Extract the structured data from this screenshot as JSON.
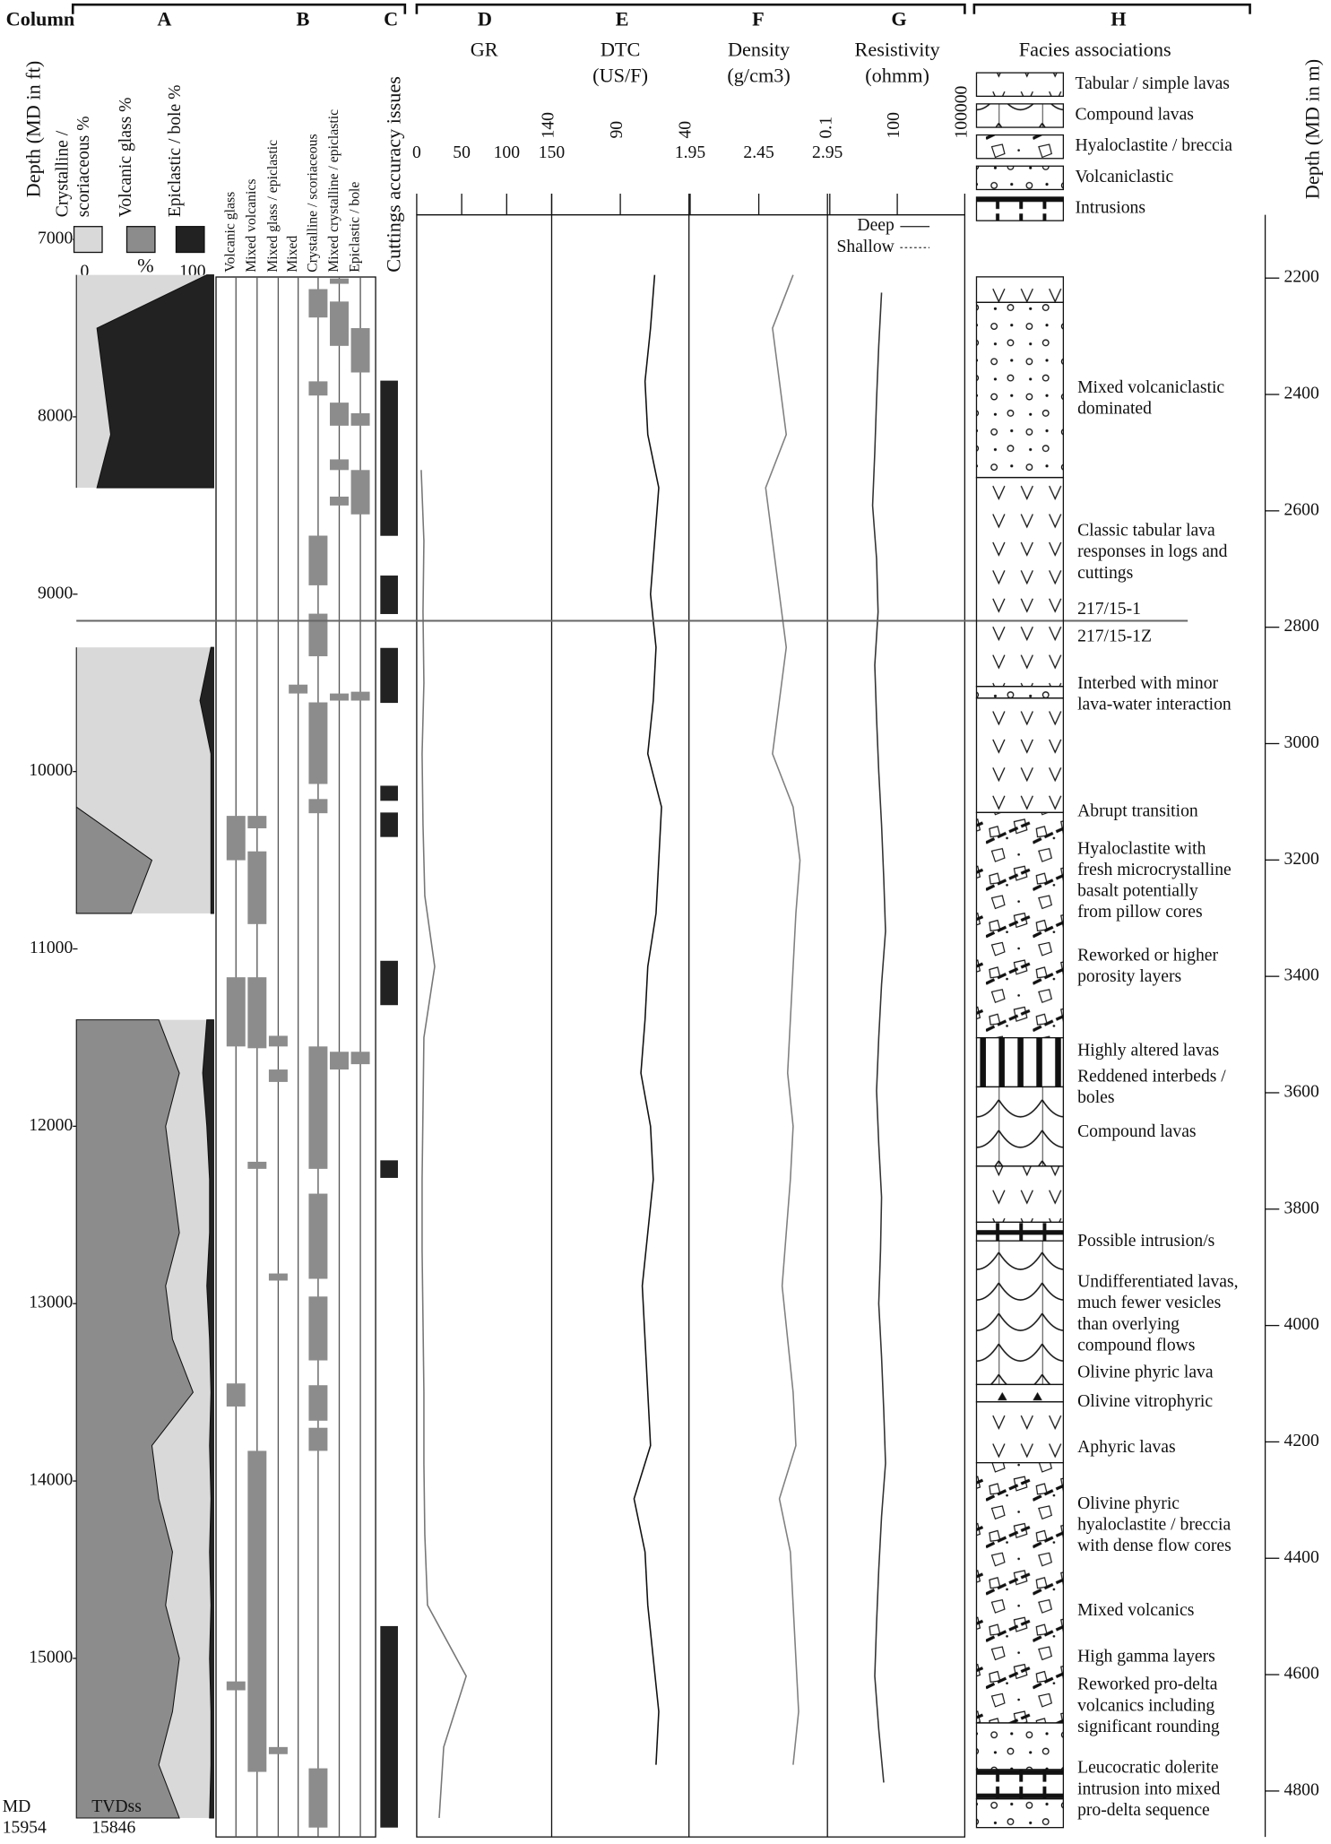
{
  "header": {
    "column": "Column",
    "letters": [
      "A",
      "B",
      "C",
      "D",
      "E",
      "F",
      "G",
      "H"
    ]
  },
  "depth_ft": {
    "label": "Depth (MD in ft)",
    "lim": [
      7000,
      15954
    ],
    "ticks": [
      7000,
      8000,
      9000,
      10000,
      11000,
      12000,
      13000,
      14000,
      15000
    ],
    "md_label": "MD",
    "md_value": 15954
  },
  "depth_m": {
    "label": "Depth (MD in m)",
    "lim": [
      2133.6,
      4862.8
    ],
    "ticks": [
      2200,
      2400,
      2600,
      2800,
      3000,
      3200,
      3400,
      3600,
      3800,
      4000,
      4200,
      4400,
      4600,
      4800
    ]
  },
  "column_a": {
    "legend": [
      {
        "label": [
          "Crystalline /",
          "scoriaceous %"
        ],
        "color": "#d9d9d9"
      },
      {
        "label": [
          "Volcanic glass %"
        ],
        "color": "#8c8c8c"
      },
      {
        "label": [
          "Epiclastic / bole %"
        ],
        "color": "#222222"
      }
    ],
    "axis_min": 0,
    "axis_unit": "%",
    "axis_max": 100,
    "depths": [
      7200,
      7500,
      7800,
      8100,
      8400,
      8700,
      9000,
      9300,
      9600,
      9900,
      10200,
      10500,
      10800,
      11100,
      11400,
      11700,
      12000,
      12300,
      12600,
      12900,
      13200,
      13500,
      13800,
      14100,
      14400,
      14700,
      15000,
      15300,
      15600,
      15900
    ],
    "glass": [
      0,
      0,
      0,
      0,
      0,
      null,
      null,
      0,
      0,
      0,
      0,
      55,
      40,
      null,
      60,
      75,
      65,
      70,
      75,
      65,
      70,
      85,
      55,
      60,
      70,
      65,
      75,
      70,
      60,
      75
    ],
    "epiclastic": [
      5,
      85,
      80,
      75,
      85,
      null,
      null,
      2,
      10,
      2,
      2,
      2,
      2,
      null,
      5,
      8,
      5,
      3,
      3,
      5,
      3,
      2,
      3,
      2,
      3,
      2,
      3,
      2,
      2,
      3
    ],
    "tvdss_label": "TVDss",
    "tvdss_value": 15846
  },
  "column_b": {
    "color": "#8c8c8c",
    "lithologies": [
      {
        "name": "Volcanic glass",
        "intervals": [
          [
            10250,
            10500
          ],
          [
            11160,
            11550
          ],
          [
            13450,
            13580
          ],
          [
            15130,
            15180
          ]
        ]
      },
      {
        "name": "Mixed volcanics",
        "intervals": [
          [
            10250,
            10320
          ],
          [
            10450,
            10860
          ],
          [
            11160,
            11560
          ],
          [
            12200,
            12240
          ],
          [
            13830,
            15640
          ]
        ]
      },
      {
        "name": "Mixed glass / epiclastic",
        "intervals": [
          [
            11490,
            11550
          ],
          [
            11680,
            11750
          ],
          [
            12830,
            12870
          ],
          [
            15500,
            15540
          ]
        ]
      },
      {
        "name": "Mixed",
        "intervals": [
          [
            9510,
            9560
          ]
        ]
      },
      {
        "name": "Crystalline / scoriaceous",
        "intervals": [
          [
            7280,
            7440
          ],
          [
            7800,
            7880
          ],
          [
            8670,
            8950
          ],
          [
            9110,
            9350
          ],
          [
            9610,
            10070
          ],
          [
            10155,
            10235
          ],
          [
            11550,
            12240
          ],
          [
            12380,
            12860
          ],
          [
            12960,
            13320
          ],
          [
            13460,
            13660
          ],
          [
            13700,
            13830
          ],
          [
            15620,
            15954
          ]
        ]
      },
      {
        "name": "Mixed crystalline / epiclastic",
        "intervals": [
          [
            7220,
            7250
          ],
          [
            7350,
            7600
          ],
          [
            7920,
            8050
          ],
          [
            8240,
            8300
          ],
          [
            8450,
            8500
          ],
          [
            9560,
            9600
          ],
          [
            11580,
            11680
          ]
        ]
      },
      {
        "name": "Epiclastic / bole",
        "intervals": [
          [
            7500,
            7750
          ],
          [
            7980,
            8050
          ],
          [
            8300,
            8550
          ],
          [
            9550,
            9600
          ],
          [
            11580,
            11650
          ]
        ]
      }
    ]
  },
  "column_c": {
    "label": "Cuttings accuracy issues",
    "color": "#222222",
    "intervals": [
      [
        7796,
        8671
      ],
      [
        8895,
        9112
      ],
      [
        9303,
        9613
      ],
      [
        10080,
        10165
      ],
      [
        10231,
        10369
      ],
      [
        11067,
        11317
      ],
      [
        12192,
        12291
      ],
      [
        14818,
        15954
      ]
    ]
  },
  "logs": [
    {
      "title": [
        "GR"
      ],
      "lim": [
        0,
        150
      ],
      "ticks": [
        0,
        50,
        100,
        150
      ],
      "color": "#777777",
      "log": false,
      "depths": [
        8300,
        8700,
        9100,
        9500,
        9900,
        10300,
        10700,
        11100,
        11500,
        11900,
        12300,
        12700,
        13100,
        13500,
        13900,
        14300,
        14700,
        15100,
        15500,
        15900
      ],
      "values": [
        5,
        8,
        7,
        8,
        6,
        7,
        9,
        20,
        8,
        7,
        6,
        6,
        7,
        8,
        8,
        9,
        12,
        55,
        30,
        25
      ]
    },
    {
      "title": [
        "DTC",
        "(US/F)"
      ],
      "lim": [
        140,
        40
      ],
      "ticks": [
        140,
        90,
        40
      ],
      "color": "#111111",
      "log": false,
      "depths": [
        7200,
        7500,
        7800,
        8100,
        8400,
        8700,
        9000,
        9300,
        9600,
        9900,
        10200,
        10500,
        10800,
        11100,
        11400,
        11700,
        12000,
        12300,
        12600,
        12900,
        13200,
        13500,
        13800,
        14100,
        14400,
        14700,
        15000,
        15300,
        15600
      ],
      "values": [
        65,
        68,
        72,
        70,
        62,
        65,
        68,
        64,
        66,
        70,
        60,
        62,
        64,
        70,
        72,
        75,
        68,
        66,
        70,
        74,
        72,
        70,
        68,
        80,
        72,
        70,
        66,
        62,
        64
      ]
    },
    {
      "title": [
        "Density",
        "(g/cm3)"
      ],
      "lim": [
        1.95,
        2.95
      ],
      "ticks": [
        1.95,
        2.45,
        2.95
      ],
      "color": "#808080",
      "log": false,
      "depths": [
        7200,
        7500,
        7800,
        8100,
        8400,
        8700,
        9000,
        9300,
        9600,
        9900,
        10200,
        10500,
        10800,
        11100,
        11400,
        11700,
        12000,
        12300,
        12600,
        12900,
        13200,
        13500,
        13800,
        14100,
        14400,
        14700,
        15000,
        15300,
        15600
      ],
      "values": [
        2.7,
        2.55,
        2.6,
        2.65,
        2.5,
        2.55,
        2.6,
        2.65,
        2.6,
        2.55,
        2.7,
        2.75,
        2.72,
        2.7,
        2.68,
        2.66,
        2.7,
        2.68,
        2.65,
        2.62,
        2.66,
        2.7,
        2.72,
        2.6,
        2.68,
        2.7,
        2.72,
        2.74,
        2.7
      ]
    },
    {
      "title": [
        "Resistivity",
        "(ohmm)"
      ],
      "lim": [
        0.1,
        100000
      ],
      "ticks": [
        0.1,
        100,
        100000
      ],
      "color": "#333333",
      "log": true,
      "legend": [
        "Deep",
        "Shallow"
      ],
      "depths": [
        7300,
        7600,
        7900,
        8200,
        8500,
        8800,
        9100,
        9400,
        9700,
        10000,
        10300,
        10600,
        10900,
        11200,
        11500,
        11800,
        12100,
        12400,
        12700,
        13000,
        13300,
        13600,
        13900,
        14200,
        14500,
        14800,
        15100,
        15400,
        15700
      ],
      "values": [
        20,
        15,
        12,
        10,
        8,
        12,
        14,
        10,
        12,
        15,
        20,
        25,
        30,
        20,
        15,
        12,
        15,
        20,
        18,
        15,
        20,
        25,
        30,
        20,
        15,
        12,
        10,
        15,
        25
      ]
    }
  ],
  "well_change": {
    "depth": 9150,
    "upper": "217/15-1",
    "lower": "217/15-1Z"
  },
  "facies": {
    "title": "Facies associations",
    "legend": [
      {
        "type": "tabular",
        "label": "Tabular / simple lavas"
      },
      {
        "type": "compound",
        "label": "Compound lavas"
      },
      {
        "type": "hyaloclastite",
        "label": "Hyaloclastite / breccia"
      },
      {
        "type": "volcaniclastic",
        "label": "Volcaniclastic"
      },
      {
        "type": "intrusion",
        "label": "Intrusions"
      }
    ],
    "intervals": [
      {
        "top": 7211,
        "base": 7355,
        "type": "tabular"
      },
      {
        "top": 7355,
        "base": 8342,
        "type": "volcaniclastic"
      },
      {
        "top": 8342,
        "base": 9520,
        "type": "tabular"
      },
      {
        "top": 9520,
        "base": 9586,
        "type": "volcaniclastic"
      },
      {
        "top": 9586,
        "base": 10231,
        "type": "tabular"
      },
      {
        "top": 10231,
        "base": 11501,
        "type": "hyaloclastite"
      },
      {
        "top": 11501,
        "base": 11778,
        "type": "altered"
      },
      {
        "top": 11778,
        "base": 12225,
        "type": "compound"
      },
      {
        "top": 12225,
        "base": 12541,
        "type": "tabular"
      },
      {
        "top": 12541,
        "base": 12646,
        "type": "intrusion"
      },
      {
        "top": 12646,
        "base": 13456,
        "type": "compound"
      },
      {
        "top": 13456,
        "base": 13554,
        "type": "vitrophyric"
      },
      {
        "top": 13554,
        "base": 13897,
        "type": "tabular"
      },
      {
        "top": 13897,
        "base": 15364,
        "type": "hyaloclastite"
      },
      {
        "top": 15364,
        "base": 15627,
        "type": "volcaniclastic"
      },
      {
        "top": 15627,
        "base": 15792,
        "type": "intrusion"
      },
      {
        "top": 15792,
        "base": 15954,
        "type": "volcaniclastic"
      }
    ],
    "notes": [
      [
        "Mixed volcaniclastic",
        "dominated"
      ],
      [
        "Classic tabular lava",
        "responses in logs and",
        "cuttings"
      ],
      [
        "Interbed with minor",
        "lava-water interaction"
      ],
      [
        "Abrupt transition"
      ],
      [
        "Hyaloclastite with",
        "fresh microcrystalline",
        "basalt potentially",
        "from pillow cores"
      ],
      [
        "Reworked or higher",
        "porosity layers"
      ],
      [
        "Highly altered lavas"
      ],
      [
        "Reddened interbeds /",
        "boles"
      ],
      [
        "Compound lavas"
      ],
      [
        "Possible intrusion/s"
      ],
      [
        "Undifferentiated lavas,",
        "much fewer vesicles",
        "than overlying",
        "compound flows"
      ],
      [
        "Olivine phyric lava"
      ],
      [
        "Olivine vitrophyric"
      ],
      [
        "Aphyric lavas"
      ],
      [
        "Olivine phyric",
        "hyaloclastite / breccia",
        "with dense flow cores"
      ],
      [
        "Mixed volcanics"
      ],
      [
        "High gamma layers"
      ],
      [
        "Reworked pro-delta",
        "volcanics including",
        "significant rounding"
      ],
      [
        "Leucocratic dolerite",
        "intrusion into mixed",
        "pro-delta sequence"
      ]
    ]
  }
}
